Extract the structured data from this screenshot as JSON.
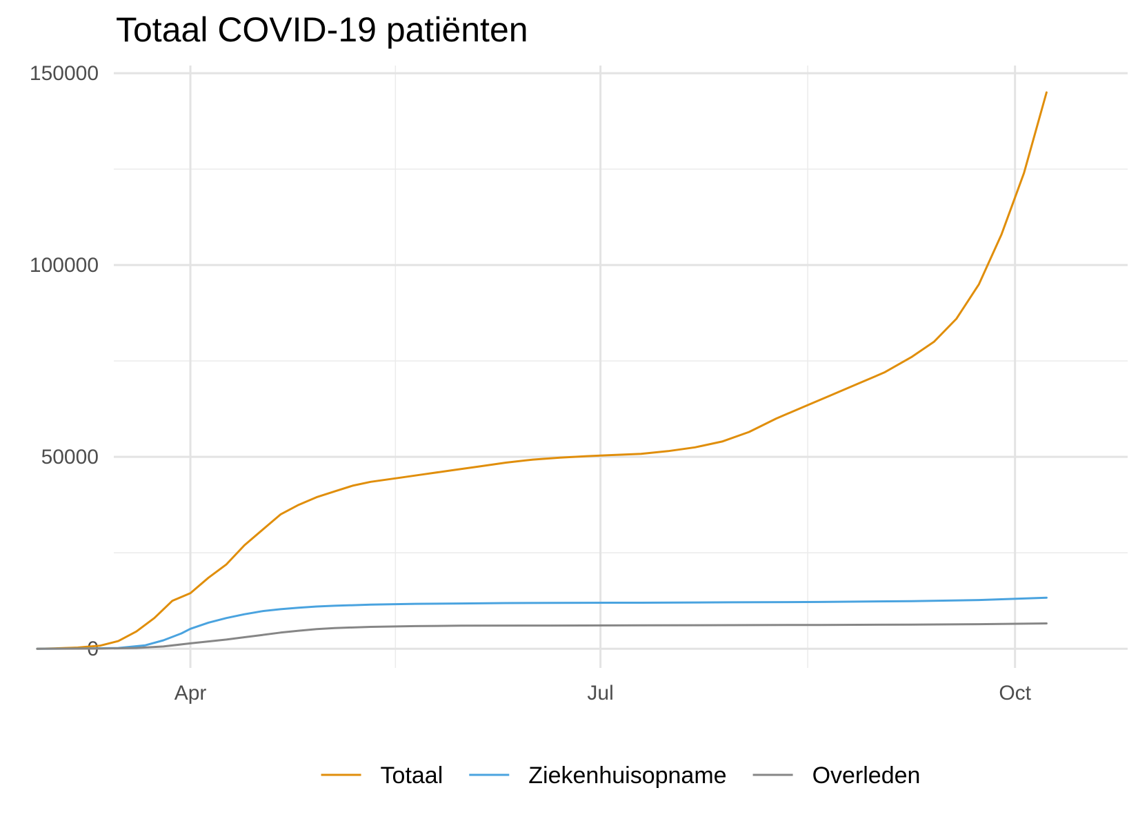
{
  "chart_data": {
    "type": "line",
    "title": "Totaal COVID-19 patiënten",
    "xlabel": "",
    "ylabel": "",
    "grid": true,
    "legend_position": "bottom",
    "x_axis": {
      "min": -17,
      "max": 208,
      "ticks": [
        {
          "pos": 0,
          "label": "Apr"
        },
        {
          "pos": 91,
          "label": "Jul"
        },
        {
          "pos": 183,
          "label": "Oct"
        }
      ],
      "minor_ticks": [
        45.5,
        137
      ]
    },
    "y_axis": {
      "min": -5000,
      "max": 152000,
      "ticks": [
        0,
        50000,
        100000,
        150000
      ],
      "minor_ticks": [
        25000,
        75000,
        125000
      ]
    },
    "series": [
      {
        "name": "Totaal",
        "color": "#E08E0B",
        "points": [
          [
            -34,
            0
          ],
          [
            -30,
            100
          ],
          [
            -25,
            300
          ],
          [
            -20,
            800
          ],
          [
            -16,
            2000
          ],
          [
            -12,
            4500
          ],
          [
            -8,
            8000
          ],
          [
            -4,
            12500
          ],
          [
            0,
            14500
          ],
          [
            4,
            18500
          ],
          [
            8,
            22000
          ],
          [
            12,
            27000
          ],
          [
            16,
            31000
          ],
          [
            20,
            35000
          ],
          [
            24,
            37500
          ],
          [
            28,
            39500
          ],
          [
            32,
            41000
          ],
          [
            36,
            42500
          ],
          [
            40,
            43500
          ],
          [
            46,
            44500
          ],
          [
            52,
            45500
          ],
          [
            58,
            46500
          ],
          [
            64,
            47500
          ],
          [
            70,
            48500
          ],
          [
            76,
            49300
          ],
          [
            82,
            49800
          ],
          [
            88,
            50200
          ],
          [
            94,
            50500
          ],
          [
            100,
            50800
          ],
          [
            106,
            51500
          ],
          [
            112,
            52500
          ],
          [
            118,
            54000
          ],
          [
            124,
            56500
          ],
          [
            130,
            60000
          ],
          [
            136,
            63000
          ],
          [
            142,
            66000
          ],
          [
            148,
            69000
          ],
          [
            154,
            72000
          ],
          [
            160,
            76000
          ],
          [
            165,
            80000
          ],
          [
            170,
            86000
          ],
          [
            175,
            95000
          ],
          [
            180,
            108000
          ],
          [
            185,
            124000
          ],
          [
            190,
            145000
          ]
        ]
      },
      {
        "name": "Ziekenhuisopname",
        "color": "#4AA3DF",
        "points": [
          [
            -34,
            0
          ],
          [
            -25,
            50
          ],
          [
            -16,
            200
          ],
          [
            -10,
            900
          ],
          [
            -6,
            2200
          ],
          [
            -2,
            4000
          ],
          [
            0,
            5200
          ],
          [
            4,
            6800
          ],
          [
            8,
            8000
          ],
          [
            12,
            9000
          ],
          [
            16,
            9800
          ],
          [
            20,
            10300
          ],
          [
            24,
            10700
          ],
          [
            28,
            11000
          ],
          [
            32,
            11200
          ],
          [
            40,
            11500
          ],
          [
            50,
            11700
          ],
          [
            60,
            11800
          ],
          [
            70,
            11900
          ],
          [
            80,
            11950
          ],
          [
            100,
            12000
          ],
          [
            120,
            12100
          ],
          [
            140,
            12200
          ],
          [
            160,
            12400
          ],
          [
            175,
            12700
          ],
          [
            190,
            13300
          ]
        ]
      },
      {
        "name": "Overleden",
        "color": "#868686",
        "points": [
          [
            -34,
            0
          ],
          [
            -20,
            30
          ],
          [
            -12,
            200
          ],
          [
            -6,
            600
          ],
          [
            0,
            1400
          ],
          [
            4,
            1900
          ],
          [
            8,
            2400
          ],
          [
            12,
            3000
          ],
          [
            16,
            3600
          ],
          [
            20,
            4200
          ],
          [
            24,
            4700
          ],
          [
            28,
            5100
          ],
          [
            32,
            5400
          ],
          [
            40,
            5700
          ],
          [
            50,
            5900
          ],
          [
            60,
            6000
          ],
          [
            80,
            6050
          ],
          [
            100,
            6100
          ],
          [
            120,
            6150
          ],
          [
            140,
            6200
          ],
          [
            160,
            6300
          ],
          [
            175,
            6400
          ],
          [
            190,
            6600
          ]
        ]
      }
    ]
  }
}
